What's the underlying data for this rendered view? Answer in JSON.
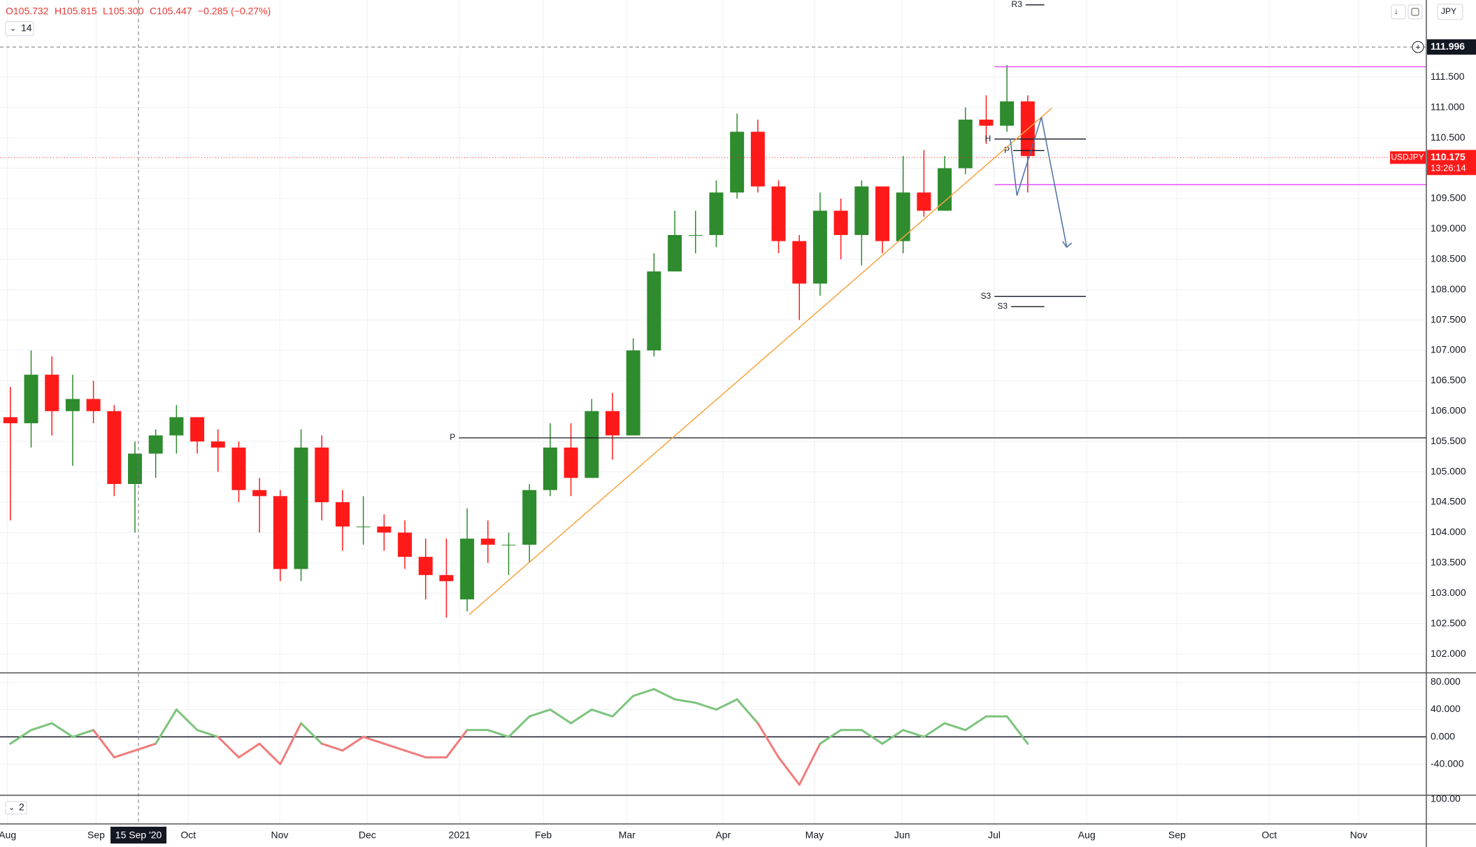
{
  "header": {
    "open": "O105.732",
    "high": "H105.815",
    "low": "L105.300",
    "close": "C105.447",
    "change": "−0.285 (−0.27%)",
    "indicator": "14",
    "currency": "JPY"
  },
  "chart_data": [
    {
      "type": "candlestick",
      "xlim": [
        0,
        68.7
      ],
      "ylim": [
        101.69,
        112.77
      ],
      "yticks": [
        {
          "value": 102,
          "label": "102.000"
        },
        {
          "value": 102.5,
          "label": "102.500"
        },
        {
          "value": 103,
          "label": "103.000"
        },
        {
          "value": 103.5,
          "label": "103.500"
        },
        {
          "value": 104,
          "label": "104.000"
        },
        {
          "value": 104.5,
          "label": "104.500"
        },
        {
          "value": 105,
          "label": "105.000"
        },
        {
          "value": 105.5,
          "label": "105.500"
        },
        {
          "value": 106,
          "label": "106.000"
        },
        {
          "value": 106.5,
          "label": "106.500"
        },
        {
          "value": 107,
          "label": "107.000"
        },
        {
          "value": 107.5,
          "label": "107.500"
        },
        {
          "value": 108,
          "label": "108.000"
        },
        {
          "value": 108.5,
          "label": "108.500"
        },
        {
          "value": 109,
          "label": "109.000"
        },
        {
          "value": 109.5,
          "label": "109.500"
        },
        {
          "value": 110,
          "label": "110.000"
        },
        {
          "value": 110.5,
          "label": "110.500"
        },
        {
          "value": 111,
          "label": "111.000"
        },
        {
          "value": 111.5,
          "label": "111.500"
        }
      ],
      "xticks": [
        {
          "value": 0.36,
          "label": "Aug"
        },
        {
          "value": 4.63,
          "label": "Sep"
        },
        {
          "value": 9.07,
          "label": "Oct"
        },
        {
          "value": 13.47,
          "label": "Nov"
        },
        {
          "value": 17.69,
          "label": "Dec"
        },
        {
          "value": 22.13,
          "label": "2021"
        },
        {
          "value": 26.17,
          "label": "Feb"
        },
        {
          "value": 30.2,
          "label": "Mar"
        },
        {
          "value": 34.83,
          "label": "Apr"
        },
        {
          "value": 39.23,
          "label": "May"
        },
        {
          "value": 43.45,
          "label": "Jun"
        },
        {
          "value": 47.89,
          "label": "Jul"
        },
        {
          "value": 52.34,
          "label": "Aug"
        },
        {
          "value": 56.69,
          "label": "Sep"
        },
        {
          "value": 61.13,
          "label": "Oct"
        },
        {
          "value": 65.44,
          "label": "Nov"
        }
      ],
      "grid": true,
      "up_color": "#2e8b2e",
      "down_color": "#ff1a1a",
      "ohlc": [
        [
          105.9,
          106.4,
          104.2,
          105.8
        ],
        [
          105.8,
          107.0,
          105.4,
          106.6
        ],
        [
          106.6,
          106.9,
          105.6,
          106.0
        ],
        [
          106.0,
          106.6,
          105.1,
          106.2
        ],
        [
          106.2,
          106.5,
          105.8,
          106.0
        ],
        [
          106.0,
          106.1,
          104.6,
          104.8
        ],
        [
          104.8,
          105.5,
          104.0,
          105.3
        ],
        [
          105.3,
          105.7,
          104.9,
          105.6
        ],
        [
          105.6,
          106.1,
          105.3,
          105.9
        ],
        [
          105.9,
          105.9,
          105.3,
          105.5
        ],
        [
          105.5,
          105.7,
          105.0,
          105.4
        ],
        [
          105.4,
          105.5,
          104.5,
          104.7
        ],
        [
          104.7,
          104.9,
          104.0,
          104.6
        ],
        [
          104.6,
          104.7,
          103.2,
          103.4
        ],
        [
          103.4,
          105.7,
          103.2,
          105.4
        ],
        [
          105.4,
          105.6,
          104.2,
          104.5
        ],
        [
          104.5,
          104.7,
          103.7,
          104.1
        ],
        [
          104.1,
          104.6,
          103.8,
          104.1
        ],
        [
          104.1,
          104.3,
          103.7,
          104.0
        ],
        [
          104.0,
          104.2,
          103.4,
          103.6
        ],
        [
          103.6,
          103.9,
          102.9,
          103.3
        ],
        [
          103.3,
          103.9,
          102.6,
          103.2
        ],
        [
          102.9,
          104.4,
          102.7,
          103.9
        ],
        [
          103.9,
          104.2,
          103.5,
          103.8
        ],
        [
          103.8,
          104.0,
          103.3,
          103.8
        ],
        [
          103.8,
          104.8,
          103.5,
          104.7
        ],
        [
          104.7,
          105.8,
          104.6,
          105.4
        ],
        [
          105.4,
          105.8,
          104.6,
          104.9
        ],
        [
          104.9,
          106.2,
          104.9,
          106.0
        ],
        [
          106.0,
          106.3,
          105.2,
          105.6
        ],
        [
          105.6,
          107.2,
          105.6,
          107.0
        ],
        [
          107.0,
          108.6,
          106.9,
          108.3
        ],
        [
          108.3,
          109.3,
          108.3,
          108.9
        ],
        [
          108.9,
          109.3,
          108.6,
          108.9
        ],
        [
          108.9,
          109.8,
          108.7,
          109.6
        ],
        [
          109.6,
          110.9,
          109.5,
          110.6
        ],
        [
          110.6,
          110.8,
          109.6,
          109.7
        ],
        [
          109.7,
          109.8,
          108.6,
          108.8
        ],
        [
          108.8,
          108.9,
          107.5,
          108.1
        ],
        [
          108.1,
          109.6,
          107.9,
          109.3
        ],
        [
          109.3,
          109.5,
          108.5,
          108.9
        ],
        [
          108.9,
          109.8,
          108.4,
          109.7
        ],
        [
          109.7,
          109.7,
          108.6,
          108.8
        ],
        [
          108.8,
          110.2,
          108.6,
          109.6
        ],
        [
          109.6,
          110.3,
          109.2,
          109.3
        ],
        [
          109.3,
          110.2,
          109.3,
          110.0
        ],
        [
          110.0,
          111.0,
          109.9,
          110.8
        ],
        [
          110.8,
          111.2,
          110.4,
          110.7
        ],
        [
          110.7,
          111.7,
          110.6,
          111.1
        ],
        [
          111.1,
          111.2,
          109.6,
          110.2
        ]
      ],
      "crosshair": {
        "value": 111.996,
        "label": "111.996"
      },
      "x_crosshair": {
        "value": 6.67,
        "label": "15 Sep '20"
      },
      "last_price": {
        "symbol": "USDJPY",
        "value": 110.175,
        "label": "110.175",
        "countdown": "13:26:14",
        "color": "#ff1a1a"
      },
      "levels": [
        {
          "label": "R3",
          "value": 112.69,
          "x": [
            49.4,
            50.3
          ],
          "color": "#131722"
        },
        {
          "label": "P",
          "value": 105.56,
          "x": [
            22.1,
            68.7
          ],
          "color": "#131722"
        },
        {
          "label": "H",
          "value": 110.48,
          "x": [
            47.9,
            52.3
          ],
          "color": "#131722"
        },
        {
          "label": "P",
          "value": 110.29,
          "x": [
            48.8,
            50.3
          ],
          "color": "#131722"
        },
        {
          "label": "S3",
          "value": 107.89,
          "x": [
            47.9,
            52.3
          ],
          "color": "#131722"
        },
        {
          "label": "S3",
          "value": 107.72,
          "x": [
            48.7,
            50.3
          ],
          "color": "#131722"
        },
        {
          "value": 111.67,
          "x": [
            47.9,
            68.7
          ],
          "color": "#e040fb"
        },
        {
          "value": 109.73,
          "x": [
            47.9,
            68.7
          ],
          "color": "#e040fb"
        }
      ],
      "trendline": {
        "x": [
          22.6,
          50.66
        ],
        "y": [
          102.65,
          110.99
        ],
        "color": "#f7a440"
      },
      "arrow": {
        "x": [
          48.66,
          48.98,
          50.16,
          51.38
        ],
        "y": [
          110.48,
          109.55,
          110.84,
          108.7
        ],
        "color": "#4a6fa5"
      }
    },
    {
      "type": "line",
      "ylim": [
        -85.5,
        93.8
      ],
      "yticks": [
        {
          "value": 80,
          "label": "80.000"
        },
        {
          "value": 40,
          "label": "40.000"
        },
        {
          "value": 0,
          "label": "0.000"
        },
        {
          "value": -40,
          "label": "-40.000"
        }
      ],
      "up_color": "#7cc47c",
      "down_color": "#f07c7c",
      "values": [
        -10,
        10,
        20,
        0,
        10,
        -30,
        -20,
        -10,
        40,
        10,
        0,
        -30,
        -10,
        -40,
        20,
        -10,
        -20,
        0,
        -10,
        -20,
        -30,
        -30,
        10,
        10,
        0,
        30,
        40,
        20,
        40,
        30,
        60,
        70,
        55,
        50,
        40,
        55,
        20,
        -30,
        -70,
        -10,
        10,
        10,
        -10,
        10,
        0,
        20,
        10,
        30,
        30,
        -10
      ]
    },
    {
      "type": "panel",
      "label": "2",
      "ylim": [
        0,
        105
      ],
      "yticks": [
        {
          "value": 100,
          "label": "100.00"
        }
      ]
    }
  ]
}
